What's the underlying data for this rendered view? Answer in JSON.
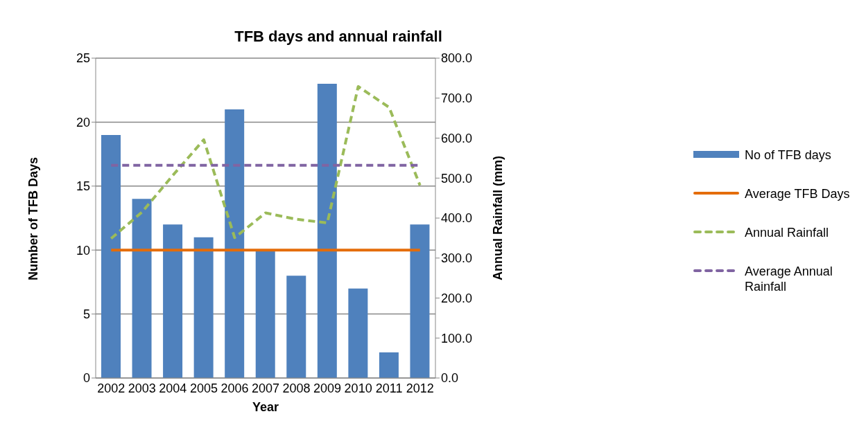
{
  "chart_data": {
    "type": "bar",
    "title": "TFB days and annual rainfall",
    "xlabel": "Year",
    "ylabel": "Number of TFB Days",
    "y2label": "Annual Rainfall (mm)",
    "categories": [
      "2002",
      "2003",
      "2004",
      "2005",
      "2006",
      "2007",
      "2008",
      "2009",
      "2010",
      "2011",
      "2012"
    ],
    "series": [
      {
        "name": "No of TFB days",
        "color": "#4f81bd",
        "values": [
          19,
          14,
          12,
          11,
          21,
          10,
          8,
          23,
          7,
          2,
          12
        ]
      },
      {
        "name": "Average TFB Days",
        "type": "line",
        "color": "#e46c0a",
        "line_style": "solid",
        "values": [
          10,
          10,
          10,
          10,
          10,
          10,
          10,
          10,
          10,
          10,
          10
        ]
      },
      {
        "name": "Annual Rainfall",
        "type": "line",
        "axis": "y2",
        "color": "#9bbb59",
        "line_style": "dashed",
        "values": [
          349,
          415,
          507,
          596,
          351,
          413,
          397,
          388,
          729,
          677,
          482
        ]
      },
      {
        "name": "Average Annual Rainfall",
        "type": "line",
        "axis": "y2",
        "color": "#8064a2",
        "line_style": "dashed",
        "values": [
          532,
          532,
          532,
          532,
          532,
          532,
          532,
          532,
          532,
          532,
          532
        ]
      }
    ],
    "ylim": [
      0,
      25
    ],
    "yticks": [
      0,
      5,
      10,
      15,
      20,
      25
    ],
    "y2lim": [
      0,
      800
    ],
    "y2ticks": [
      {
        "value": 0,
        "label": "0.0"
      },
      {
        "value": 100,
        "label": "100.0"
      },
      {
        "value": 200,
        "label": "200.0"
      },
      {
        "value": 300,
        "label": "300.0"
      },
      {
        "value": 400,
        "label": "400.0"
      },
      {
        "value": 500,
        "label": "500.0"
      },
      {
        "value": 600,
        "label": "600.0"
      },
      {
        "value": 700,
        "label": "700.0"
      },
      {
        "value": 800,
        "label": "800.0"
      }
    ],
    "grid": "y",
    "legend": "right",
    "marker": "none"
  }
}
